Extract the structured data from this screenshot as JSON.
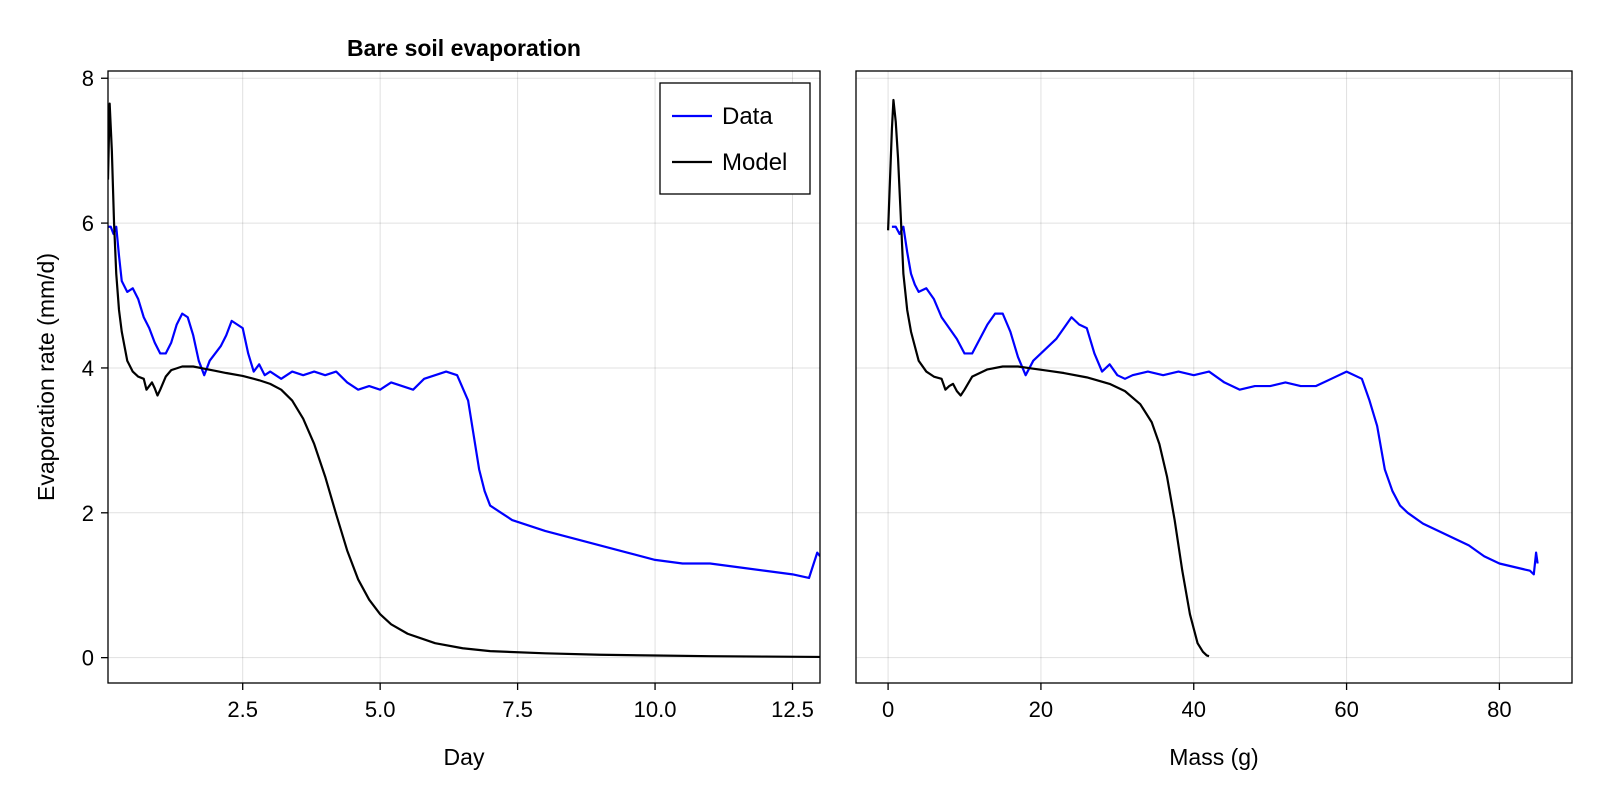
{
  "chart_data": [
    {
      "type": "line",
      "title": "Bare soil evaporation",
      "xlabel": "Day",
      "ylabel": "Evaporation rate (mm/d)",
      "xlim": [
        0.05,
        13.0
      ],
      "ylim": [
        -0.35,
        8.1
      ],
      "xticks": [
        2.5,
        5.0,
        7.5,
        10.0,
        12.5
      ],
      "xtick_labels": [
        "2.5",
        "5.0",
        "7.5",
        "10.0",
        "12.5"
      ],
      "yticks": [
        0,
        2,
        4,
        6,
        8
      ],
      "ytick_labels": [
        "0",
        "2",
        "4",
        "6",
        "8"
      ],
      "grid": true,
      "legend": {
        "position": "top-right",
        "entries": [
          "Data",
          "Model"
        ]
      },
      "series": [
        {
          "name": "Data",
          "color": "#0000ff",
          "x": [
            0.05,
            0.1,
            0.15,
            0.2,
            0.25,
            0.3,
            0.4,
            0.5,
            0.6,
            0.7,
            0.8,
            0.9,
            1.0,
            1.1,
            1.2,
            1.3,
            1.4,
            1.5,
            1.6,
            1.7,
            1.8,
            1.9,
            2.0,
            2.1,
            2.2,
            2.3,
            2.4,
            2.5,
            2.6,
            2.7,
            2.8,
            2.9,
            3.0,
            3.1,
            3.2,
            3.3,
            3.4,
            3.6,
            3.8,
            4.0,
            4.2,
            4.4,
            4.6,
            4.8,
            5.0,
            5.2,
            5.4,
            5.6,
            5.8,
            6.0,
            6.2,
            6.4,
            6.6,
            6.8,
            6.9,
            7.0,
            7.2,
            7.4,
            7.6,
            7.8,
            8.0,
            8.5,
            9.0,
            9.5,
            10.0,
            10.5,
            11.0,
            11.5,
            12.0,
            12.5,
            12.8,
            12.95,
            13.0
          ],
          "y": [
            5.95,
            5.95,
            5.85,
            5.95,
            5.55,
            5.2,
            5.05,
            5.1,
            4.95,
            4.7,
            4.55,
            4.35,
            4.2,
            4.2,
            4.35,
            4.6,
            4.75,
            4.7,
            4.45,
            4.1,
            3.9,
            4.1,
            4.2,
            4.3,
            4.45,
            4.65,
            4.6,
            4.55,
            4.2,
            3.95,
            4.05,
            3.9,
            3.95,
            3.9,
            3.85,
            3.9,
            3.95,
            3.9,
            3.95,
            3.9,
            3.95,
            3.8,
            3.7,
            3.75,
            3.7,
            3.8,
            3.75,
            3.7,
            3.85,
            3.9,
            3.95,
            3.9,
            3.55,
            2.6,
            2.3,
            2.1,
            2.0,
            1.9,
            1.85,
            1.8,
            1.75,
            1.65,
            1.55,
            1.45,
            1.35,
            1.3,
            1.3,
            1.25,
            1.2,
            1.15,
            1.1,
            1.45,
            1.4
          ]
        },
        {
          "name": "Model",
          "color": "#000000",
          "x": [
            0.05,
            0.08,
            0.12,
            0.16,
            0.2,
            0.25,
            0.3,
            0.35,
            0.4,
            0.5,
            0.6,
            0.7,
            0.75,
            0.8,
            0.85,
            0.9,
            0.95,
            1.0,
            1.1,
            1.2,
            1.4,
            1.6,
            1.8,
            2.0,
            2.2,
            2.5,
            2.8,
            3.0,
            3.2,
            3.4,
            3.6,
            3.8,
            4.0,
            4.2,
            4.4,
            4.6,
            4.8,
            5.0,
            5.2,
            5.5,
            6.0,
            6.5,
            7.0,
            8.0,
            9.0,
            10.0,
            11.0,
            12.0,
            13.0
          ],
          "y": [
            6.6,
            7.65,
            7.0,
            6.0,
            5.3,
            4.8,
            4.5,
            4.3,
            4.1,
            3.95,
            3.88,
            3.85,
            3.7,
            3.75,
            3.8,
            3.72,
            3.62,
            3.7,
            3.88,
            3.97,
            4.02,
            4.02,
            3.99,
            3.96,
            3.93,
            3.89,
            3.83,
            3.78,
            3.7,
            3.55,
            3.3,
            2.95,
            2.5,
            1.98,
            1.48,
            1.08,
            0.8,
            0.6,
            0.46,
            0.33,
            0.2,
            0.13,
            0.09,
            0.06,
            0.04,
            0.03,
            0.02,
            0.015,
            0.01
          ]
        }
      ]
    },
    {
      "type": "line",
      "title": "",
      "xlabel": "Mass (g)",
      "ylabel": "",
      "xlim": [
        -4.2,
        89.5
      ],
      "ylim": [
        -0.35,
        8.1
      ],
      "xticks": [
        0,
        20,
        40,
        60,
        80
      ],
      "xtick_labels": [
        "0",
        "20",
        "40",
        "60",
        "80"
      ],
      "yticks": [
        0,
        2,
        4,
        6,
        8
      ],
      "grid": true,
      "series": [
        {
          "name": "Data",
          "color": "#0000ff",
          "x": [
            0.5,
            1.0,
            1.5,
            2.0,
            2.5,
            3.0,
            3.5,
            4.0,
            5.0,
            6.0,
            7.0,
            8.0,
            9.0,
            10.0,
            11.0,
            12.0,
            13.0,
            14.0,
            15.0,
            16.0,
            17.0,
            18.0,
            19.0,
            20.0,
            21.0,
            22.0,
            23.0,
            24.0,
            25.0,
            26.0,
            27.0,
            28.0,
            29.0,
            30.0,
            31.0,
            32.0,
            34.0,
            36.0,
            38.0,
            40.0,
            42.0,
            44.0,
            46.0,
            48.0,
            50.0,
            52.0,
            54.0,
            56.0,
            58.0,
            60.0,
            62.0,
            63.0,
            64.0,
            65.0,
            66.0,
            67.0,
            68.0,
            70.0,
            72.0,
            74.0,
            76.0,
            78.0,
            80.0,
            82.0,
            84.0,
            84.5,
            84.8,
            85.0
          ],
          "y": [
            5.95,
            5.95,
            5.85,
            5.95,
            5.6,
            5.3,
            5.15,
            5.05,
            5.1,
            4.95,
            4.7,
            4.55,
            4.4,
            4.2,
            4.2,
            4.4,
            4.6,
            4.75,
            4.75,
            4.5,
            4.15,
            3.9,
            4.1,
            4.2,
            4.3,
            4.4,
            4.55,
            4.7,
            4.6,
            4.55,
            4.2,
            3.95,
            4.05,
            3.9,
            3.85,
            3.9,
            3.95,
            3.9,
            3.95,
            3.9,
            3.95,
            3.8,
            3.7,
            3.75,
            3.75,
            3.8,
            3.75,
            3.75,
            3.85,
            3.95,
            3.85,
            3.55,
            3.2,
            2.6,
            2.3,
            2.1,
            2.0,
            1.85,
            1.75,
            1.65,
            1.55,
            1.4,
            1.3,
            1.25,
            1.2,
            1.15,
            1.45,
            1.3
          ]
        },
        {
          "name": "Model",
          "color": "#000000",
          "x": [
            0.0,
            0.5,
            0.7,
            1.0,
            1.3,
            1.7,
            2.0,
            2.5,
            3.0,
            3.5,
            4.0,
            5.0,
            6.0,
            7.0,
            7.5,
            8.0,
            8.5,
            9.0,
            9.5,
            10.0,
            11.0,
            13.0,
            15.0,
            17.0,
            19.0,
            21.0,
            23.0,
            26.0,
            29.0,
            31.0,
            33.0,
            34.5,
            35.5,
            36.5,
            37.5,
            38.5,
            39.5,
            40.5,
            41.2,
            41.7,
            42.0
          ],
          "y": [
            5.9,
            7.3,
            7.7,
            7.4,
            6.9,
            6.0,
            5.3,
            4.8,
            4.5,
            4.3,
            4.1,
            3.95,
            3.88,
            3.85,
            3.7,
            3.75,
            3.78,
            3.68,
            3.62,
            3.7,
            3.88,
            3.98,
            4.02,
            4.02,
            3.99,
            3.96,
            3.93,
            3.87,
            3.78,
            3.68,
            3.5,
            3.25,
            2.95,
            2.5,
            1.9,
            1.2,
            0.6,
            0.2,
            0.08,
            0.03,
            0.02
          ]
        }
      ]
    }
  ]
}
